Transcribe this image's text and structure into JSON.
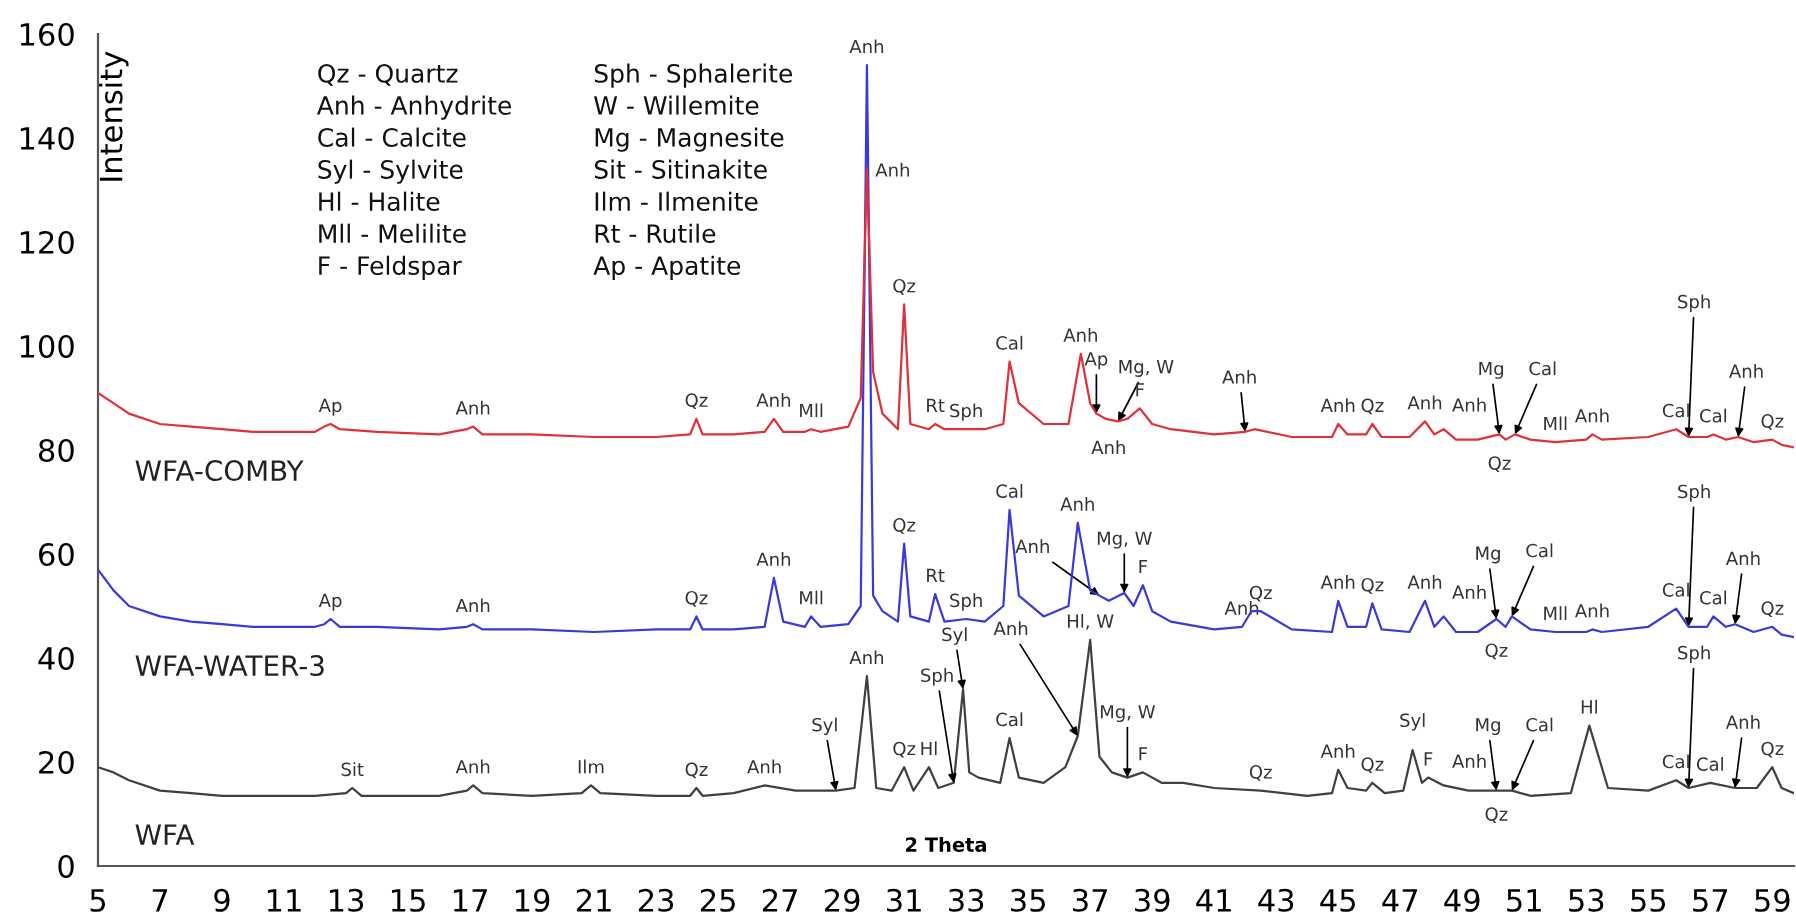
{
  "chart_data": {
    "type": "line",
    "xlabel": "2 Theta",
    "ylabel": "Intensity",
    "xlim": [
      5,
      59.7
    ],
    "xticks": [
      5,
      7,
      9,
      11,
      13,
      15,
      17,
      19,
      21,
      23,
      25,
      27,
      29,
      31,
      33,
      35,
      37,
      39,
      41,
      43,
      45,
      47,
      49,
      51,
      53,
      55,
      57,
      59
    ],
    "ylim": [
      0,
      160
    ],
    "yticks": [
      0,
      20,
      40,
      60,
      80,
      100,
      120,
      140,
      160
    ],
    "grid": false,
    "marker": "none",
    "line_style": "solid",
    "series": [
      {
        "name": "WFA-COMBY",
        "color": "#e0303a",
        "x": [
          5,
          5.5,
          6,
          7,
          8,
          9,
          10,
          11,
          12,
          12.3,
          12.5,
          12.8,
          14,
          16,
          16.9,
          17.1,
          17.4,
          19,
          21,
          23,
          24.1,
          24.3,
          24.5,
          25.5,
          26.5,
          26.8,
          27.1,
          27.8,
          28.0,
          28.3,
          29.2,
          29.6,
          29.8,
          30.0,
          30.3,
          30.8,
          31.0,
          31.2,
          31.8,
          32.0,
          32.3,
          33,
          33.6,
          34.2,
          34.4,
          34.7,
          35.5,
          36.3,
          36.7,
          37.0,
          37.2,
          37.5,
          37.9,
          38.2,
          38.6,
          39.0,
          39.6,
          41,
          42.0,
          42.3,
          43.5,
          44.8,
          45.0,
          45.3,
          45.9,
          46.1,
          46.4,
          47.3,
          47.8,
          48.1,
          48.4,
          48.8,
          49.5,
          50.2,
          50.4,
          50.7,
          51.2,
          52,
          53,
          53.2,
          53.5,
          55,
          55.9,
          56.3,
          56.9,
          57.1,
          57.5,
          57.9,
          58.4,
          59.0,
          59.3,
          59.7
        ],
        "values": [
          91,
          89,
          87,
          85,
          84.5,
          84,
          83.5,
          83.5,
          83.5,
          84.5,
          85,
          84,
          83.5,
          83,
          84,
          84.5,
          83,
          83,
          82.5,
          82.5,
          83,
          86,
          83,
          83,
          83.5,
          86,
          83.5,
          83.5,
          84,
          83.5,
          84.5,
          90,
          134,
          95,
          87,
          84,
          108,
          85,
          84,
          85,
          84,
          84,
          84,
          85,
          97,
          89,
          85,
          85,
          98.5,
          89,
          87,
          86,
          85.5,
          86,
          88,
          85,
          84,
          83,
          83.5,
          84,
          82.5,
          82.5,
          85,
          83,
          83,
          85,
          82.5,
          82.5,
          85.5,
          83,
          84,
          82,
          82,
          83,
          82,
          83,
          82,
          81.5,
          82,
          83,
          82,
          82.5,
          84,
          82.5,
          82.5,
          83,
          82,
          82.5,
          81.5,
          82,
          81,
          80.5
        ]
      },
      {
        "name": "WFA-WATER-3",
        "color": "#3a3adb",
        "x": [
          5,
          5.5,
          6,
          7,
          8,
          9,
          10,
          11,
          12,
          12.3,
          12.5,
          12.8,
          14,
          16,
          16.9,
          17.1,
          17.4,
          19,
          21,
          23,
          24.1,
          24.3,
          24.5,
          25.5,
          26.5,
          26.8,
          27.1,
          27.8,
          28.0,
          28.3,
          29.2,
          29.6,
          29.8,
          30.0,
          30.3,
          30.8,
          31.0,
          31.2,
          31.8,
          32.0,
          32.3,
          33,
          33.6,
          34.2,
          34.4,
          34.7,
          35.5,
          36.3,
          36.6,
          37.0,
          37.3,
          37.6,
          38.1,
          38.4,
          38.7,
          39.0,
          39.6,
          41,
          41.9,
          42.2,
          42.5,
          43.5,
          44.8,
          45.0,
          45.3,
          45.9,
          46.1,
          46.4,
          47.3,
          47.8,
          48.1,
          48.4,
          48.8,
          49.5,
          50.1,
          50.4,
          50.6,
          51.2,
          52,
          53,
          53.2,
          53.5,
          55,
          55.9,
          56.3,
          56.9,
          57.1,
          57.5,
          57.8,
          58.4,
          59.0,
          59.3,
          59.7
        ],
        "values": [
          57,
          53,
          50,
          48,
          47,
          46.5,
          46,
          46,
          46,
          46.5,
          47.5,
          46,
          46,
          45.5,
          46,
          46.5,
          45.5,
          45.5,
          45,
          45.5,
          45.5,
          48,
          45.5,
          45.5,
          46,
          55.4,
          47,
          46,
          48,
          46,
          46.5,
          50,
          154,
          52,
          49,
          47,
          62,
          48,
          47,
          52.3,
          47,
          47.5,
          47,
          50,
          68.5,
          52,
          48,
          50,
          66,
          53,
          52,
          51,
          52.5,
          50,
          54,
          49,
          47,
          45.5,
          46,
          49,
          49,
          45.5,
          45,
          51,
          46,
          46,
          50.5,
          45.5,
          45,
          51,
          46,
          48,
          45,
          45,
          47.5,
          46,
          48,
          45.5,
          45,
          45,
          45.5,
          45,
          46,
          49.5,
          46,
          46,
          48,
          46,
          46.5,
          45,
          46,
          44.5,
          44
        ]
      },
      {
        "name": "WFA",
        "color": "#404040",
        "x": [
          5,
          5.5,
          6,
          7,
          8,
          9,
          10,
          11,
          12,
          13.0,
          13.2,
          13.5,
          14,
          16,
          16.9,
          17.1,
          17.4,
          19,
          20.6,
          20.9,
          21.2,
          23,
          24.1,
          24.3,
          24.5,
          25.5,
          26.5,
          27.5,
          28.8,
          29.4,
          29.8,
          30.1,
          30.6,
          31.0,
          31.3,
          31.8,
          32.1,
          32.6,
          32.9,
          33.1,
          33.4,
          34.1,
          34.4,
          34.7,
          35.5,
          36.2,
          36.6,
          37.0,
          37.3,
          37.7,
          38.2,
          38.7,
          39.3,
          40,
          41,
          42.5,
          44,
          44.8,
          45.0,
          45.3,
          45.9,
          46.1,
          46.5,
          47.1,
          47.4,
          47.7,
          47.9,
          48.4,
          49.2,
          50.1,
          50.6,
          51.2,
          52.5,
          53.1,
          53.7,
          55,
          55.9,
          56.3,
          57.0,
          57.8,
          58.5,
          59.0,
          59.3,
          59.7
        ],
        "values": [
          19,
          18,
          16.5,
          14.5,
          14,
          13.5,
          13.5,
          13.5,
          13.5,
          14,
          15,
          13.5,
          13.5,
          13.5,
          14.5,
          15.5,
          14,
          13.5,
          14,
          15.5,
          14,
          13.5,
          13.5,
          15,
          13.5,
          14,
          15.5,
          14.5,
          14.5,
          15,
          36.5,
          15,
          14.5,
          19,
          14.5,
          19,
          15,
          16,
          34,
          18,
          17,
          16,
          24.6,
          17,
          16,
          19,
          25,
          43.5,
          21,
          18,
          17,
          18,
          16,
          16,
          15,
          14.5,
          13.5,
          14,
          18.5,
          15,
          14.5,
          16,
          14,
          14.5,
          22.3,
          16,
          17,
          15.5,
          14.5,
          14.5,
          14.5,
          13.5,
          14,
          27,
          15,
          14.5,
          16.5,
          15,
          16,
          15,
          15,
          19,
          15,
          14
        ]
      }
    ],
    "annotations": [
      "Qz - Quartz",
      "Anh - Anhydrite",
      "Cal - Calcite",
      "Syl - Sylvite",
      "Hl - Halite",
      "Mll - Melilite",
      "F - Feldspar",
      "Sph - Sphalerite",
      "W - Willemite",
      "Mg - Magnesite",
      "Sit - Sitinakite",
      "Ilm - Ilmenite",
      "Rt - Rutile",
      "Ap - Apatite",
      {
        "text": "Ap",
        "x": 12.5,
        "y": 85
      },
      {
        "text": "Anh",
        "x": 17.1,
        "y": 84.5
      },
      {
        "text": "Qz",
        "x": 24.3,
        "y": 86
      },
      {
        "text": "Anh",
        "x": 26.8,
        "y": 86
      },
      {
        "text": "Mll",
        "x": 28.0,
        "y": 84
      },
      {
        "text": "Anh",
        "x": 29.8,
        "y": 134
      },
      {
        "text": "Qz",
        "x": 31.0,
        "y": 108
      },
      {
        "text": "Rt",
        "x": 32.0,
        "y": 85
      },
      {
        "text": "Sph",
        "x": 33.0,
        "y": 84
      },
      {
        "text": "Cal",
        "x": 34.4,
        "y": 97
      },
      {
        "text": "Anh",
        "x": 36.7,
        "y": 98.5
      },
      {
        "text": "Ap",
        "x": 37.2,
        "y": 87
      },
      {
        "text": "Mg, W",
        "x": 37.9,
        "y": 85.5
      },
      {
        "text": "F",
        "x": 38.6,
        "y": 88
      },
      {
        "text": "Anh",
        "x": 37.6,
        "y": 84
      },
      {
        "text": "Anh",
        "x": 42.0,
        "y": 83.5
      },
      {
        "text": "Anh",
        "x": 45.0,
        "y": 85
      },
      {
        "text": "Qz",
        "x": 46.1,
        "y": 85
      },
      {
        "text": "Anh",
        "x": 47.8,
        "y": 85.5
      },
      {
        "text": "Anh",
        "x": 48.4,
        "y": 84
      },
      {
        "text": "Mg",
        "x": 50.2,
        "y": 83
      },
      {
        "text": "Cal",
        "x": 50.7,
        "y": 83
      },
      {
        "text": "Qz",
        "x": 50.2,
        "y": 81
      },
      {
        "text": "Mll",
        "x": 52.0,
        "y": 81.5
      },
      {
        "text": "Anh",
        "x": 53.2,
        "y": 83
      },
      {
        "text": "Cal",
        "x": 55.9,
        "y": 84
      },
      {
        "text": "Sph",
        "x": 56.3,
        "y": 82.5
      },
      {
        "text": "Cal",
        "x": 57.1,
        "y": 83
      },
      {
        "text": "Anh",
        "x": 57.9,
        "y": 82.5
      },
      {
        "text": "Qz",
        "x": 59.0,
        "y": 82
      },
      {
        "text": "Ap",
        "x": 12.5,
        "y": 47.5
      },
      {
        "text": "Anh",
        "x": 17.1,
        "y": 46.5
      },
      {
        "text": "Qz",
        "x": 24.3,
        "y": 48
      },
      {
        "text": "Anh",
        "x": 26.8,
        "y": 55.4
      },
      {
        "text": "Mll",
        "x": 28.0,
        "y": 48
      },
      {
        "text": "Anh",
        "x": 29.8,
        "y": 154
      },
      {
        "text": "Qz",
        "x": 31.0,
        "y": 62
      },
      {
        "text": "Rt",
        "x": 32.0,
        "y": 52.3
      },
      {
        "text": "Sph",
        "x": 33.0,
        "y": 47.5
      },
      {
        "text": "Cal",
        "x": 34.4,
        "y": 68.5
      },
      {
        "text": "Anh",
        "x": 36.6,
        "y": 66
      },
      {
        "text": "Anh",
        "x": 37.3,
        "y": 52
      },
      {
        "text": "Mg, W",
        "x": 38.1,
        "y": 52.5
      },
      {
        "text": "F",
        "x": 38.7,
        "y": 54
      },
      {
        "text": "Anh",
        "x": 41.9,
        "y": 46
      },
      {
        "text": "Qz",
        "x": 42.5,
        "y": 49
      },
      {
        "text": "Anh",
        "x": 45.0,
        "y": 51
      },
      {
        "text": "Qz",
        "x": 46.1,
        "y": 50.5
      },
      {
        "text": "Anh",
        "x": 47.8,
        "y": 51
      },
      {
        "text": "Anh",
        "x": 48.4,
        "y": 48
      },
      {
        "text": "Mg",
        "x": 50.1,
        "y": 47.5
      },
      {
        "text": "Cal",
        "x": 50.6,
        "y": 48
      },
      {
        "text": "Qz",
        "x": 50.1,
        "y": 45
      },
      {
        "text": "Mll",
        "x": 52.0,
        "y": 45
      },
      {
        "text": "Anh",
        "x": 53.2,
        "y": 45.5
      },
      {
        "text": "Cal",
        "x": 55.9,
        "y": 49.5
      },
      {
        "text": "Sph",
        "x": 56.3,
        "y": 46
      },
      {
        "text": "Cal",
        "x": 57.1,
        "y": 48
      },
      {
        "text": "Anh",
        "x": 57.8,
        "y": 46.5
      },
      {
        "text": "Qz",
        "x": 59.0,
        "y": 46
      },
      {
        "text": "Sit",
        "x": 13.2,
        "y": 15
      },
      {
        "text": "Anh",
        "x": 17.1,
        "y": 15.5
      },
      {
        "text": "Ilm",
        "x": 20.9,
        "y": 15.5
      },
      {
        "text": "Qz",
        "x": 24.3,
        "y": 15
      },
      {
        "text": "Anh",
        "x": 26.5,
        "y": 15.5
      },
      {
        "text": "Syl",
        "x": 28.8,
        "y": 14.5
      },
      {
        "text": "Anh",
        "x": 29.8,
        "y": 36.5
      },
      {
        "text": "Qz",
        "x": 31.0,
        "y": 19
      },
      {
        "text": "Hl",
        "x": 31.8,
        "y": 19
      },
      {
        "text": "Sph",
        "x": 32.6,
        "y": 16
      },
      {
        "text": "Syl",
        "x": 32.9,
        "y": 34
      },
      {
        "text": "Cal",
        "x": 34.4,
        "y": 24.6
      },
      {
        "text": "Anh",
        "x": 36.6,
        "y": 25
      },
      {
        "text": "Hl, W",
        "x": 37.0,
        "y": 43.5
      },
      {
        "text": "Mg, W",
        "x": 38.2,
        "y": 17
      },
      {
        "text": "F",
        "x": 38.7,
        "y": 18
      },
      {
        "text": "Qz",
        "x": 42.5,
        "y": 14.5
      },
      {
        "text": "Anh",
        "x": 45.0,
        "y": 18.5
      },
      {
        "text": "Qz",
        "x": 46.1,
        "y": 16
      },
      {
        "text": "Syl",
        "x": 47.4,
        "y": 22.3
      },
      {
        "text": "F",
        "x": 47.9,
        "y": 17
      },
      {
        "text": "Anh",
        "x": 48.4,
        "y": 15.5
      },
      {
        "text": "Mg",
        "x": 50.1,
        "y": 14.5
      },
      {
        "text": "Cal",
        "x": 50.6,
        "y": 14.5
      },
      {
        "text": "Qz",
        "x": 50.1,
        "y": 13.5
      },
      {
        "text": "Hl",
        "x": 53.1,
        "y": 27
      },
      {
        "text": "Cal",
        "x": 55.9,
        "y": 16.5
      },
      {
        "text": "Sph",
        "x": 56.3,
        "y": 15
      },
      {
        "text": "Cal",
        "x": 57.0,
        "y": 16
      },
      {
        "text": "Anh",
        "x": 57.8,
        "y": 15
      },
      {
        "text": "Qz",
        "x": 59.0,
        "y": 19
      }
    ]
  }
}
